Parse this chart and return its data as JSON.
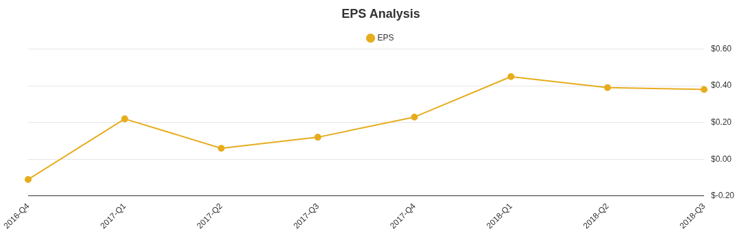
{
  "chart_data": {
    "type": "line",
    "title": "EPS Analysis",
    "categories": [
      "2016-Q4",
      "2017-Q1",
      "2017-Q2",
      "2017-Q3",
      "2017-Q4",
      "2018-Q1",
      "2018-Q2",
      "2018-Q3"
    ],
    "series": [
      {
        "name": "EPS",
        "color": "#e6ac1c",
        "values": [
          -0.11,
          0.22,
          0.06,
          0.12,
          0.23,
          0.45,
          0.39,
          0.38
        ]
      }
    ],
    "ylim": [
      -0.2,
      0.6
    ],
    "yticks": [
      {
        "value": -0.2,
        "label": "$-0.20"
      },
      {
        "value": 0,
        "label": "$0.00"
      },
      {
        "value": 0.2,
        "label": "$0.20"
      },
      {
        "value": 0.4,
        "label": "$0.40"
      },
      {
        "value": 0.6,
        "label": "$0.60"
      }
    ],
    "grid": "y",
    "legend": "top",
    "marker": "circle",
    "line_style": "solid"
  }
}
